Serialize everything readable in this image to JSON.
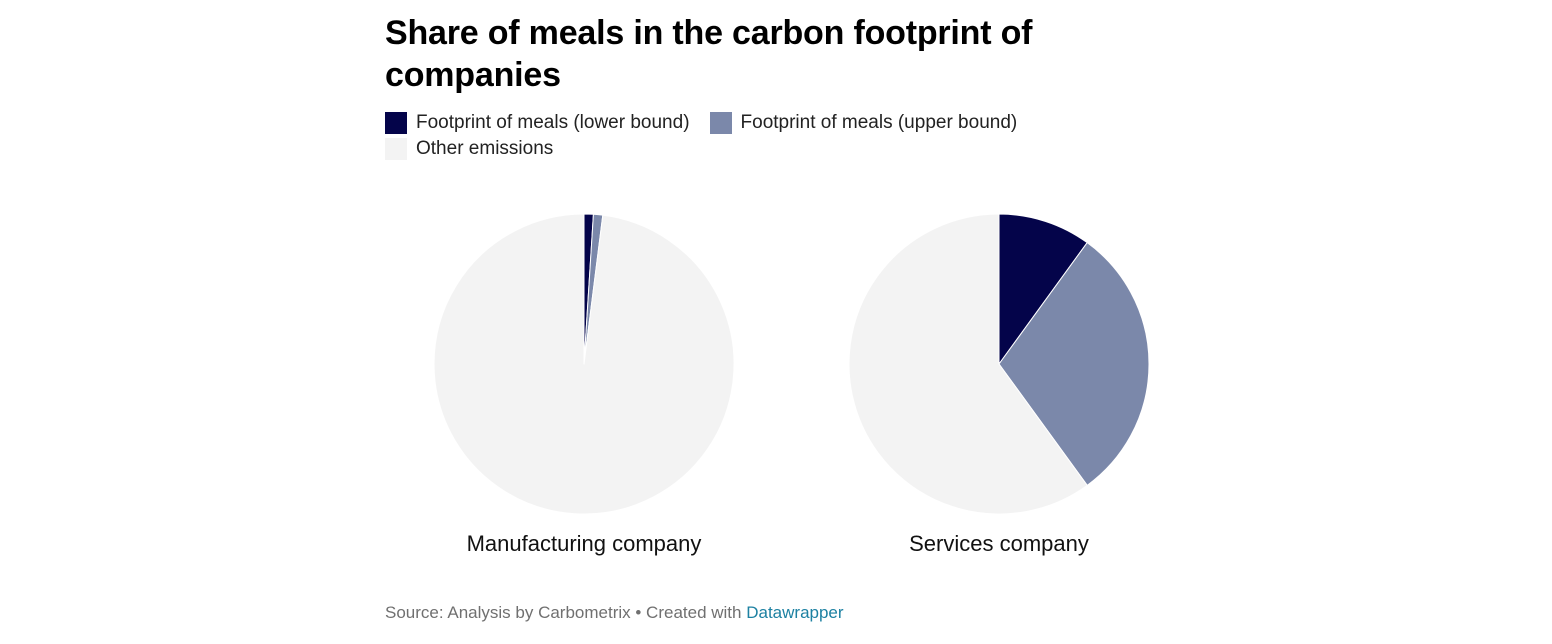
{
  "chart_data": {
    "type": "pie",
    "title": "Share of meals in the carbon footprint of companies",
    "legend": [
      {
        "label": "Footprint of meals (lower bound)",
        "color": "#04044a"
      },
      {
        "label": "Footprint of meals (upper bound)",
        "color": "#7b88aa"
      },
      {
        "label": "Other emissions",
        "color": "#f3f3f3"
      }
    ],
    "pies": [
      {
        "name": "Manufacturing company",
        "slices": [
          {
            "label": "Footprint of meals (lower bound)",
            "value": 1
          },
          {
            "label": "Footprint of meals (upper bound)",
            "value": 1
          },
          {
            "label": "Other emissions",
            "value": 98
          }
        ]
      },
      {
        "name": "Services company",
        "slices": [
          {
            "label": "Footprint of meals (lower bound)",
            "value": 10
          },
          {
            "label": "Footprint of meals (upper bound)",
            "value": 30
          },
          {
            "label": "Other emissions",
            "value": 60
          }
        ]
      }
    ]
  },
  "footer": {
    "source": "Source: Analysis by Carbometrix • Created with ",
    "link": "Datawrapper"
  }
}
